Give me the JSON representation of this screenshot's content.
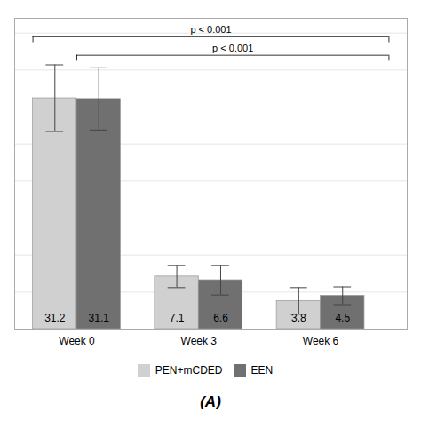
{
  "chart_data": {
    "type": "bar",
    "title": "(A)",
    "categories": [
      "Week 0",
      "Week 3",
      "Week 6"
    ],
    "series": [
      {
        "name": "PEN+mCDED",
        "color": "#d0d0d0",
        "values": [
          31.2,
          7.1,
          3.8
        ],
        "errors": [
          4.5,
          1.5,
          1.8
        ]
      },
      {
        "name": "EEN",
        "color": "#707070",
        "values": [
          31.1,
          6.6,
          4.5
        ],
        "errors": [
          4.2,
          2.0,
          1.2
        ]
      }
    ],
    "ylim": [
      0,
      42
    ],
    "yticks": [
      0,
      5,
      10,
      15,
      20,
      25,
      30,
      35,
      40
    ],
    "grid": true,
    "tick_labels": "x",
    "data_labels": true,
    "legend": "bottom",
    "annotations": [
      {
        "text": "p < 0.001",
        "y": 39.5,
        "from": [
          "Week 0",
          "PEN+mCDED"
        ],
        "to": [
          "Week 6",
          "EEN"
        ]
      },
      {
        "text": "p < 0.001",
        "y": 37.0,
        "from": [
          "Week 0",
          "EEN"
        ],
        "to": [
          "Week 6",
          "EEN"
        ]
      }
    ]
  }
}
